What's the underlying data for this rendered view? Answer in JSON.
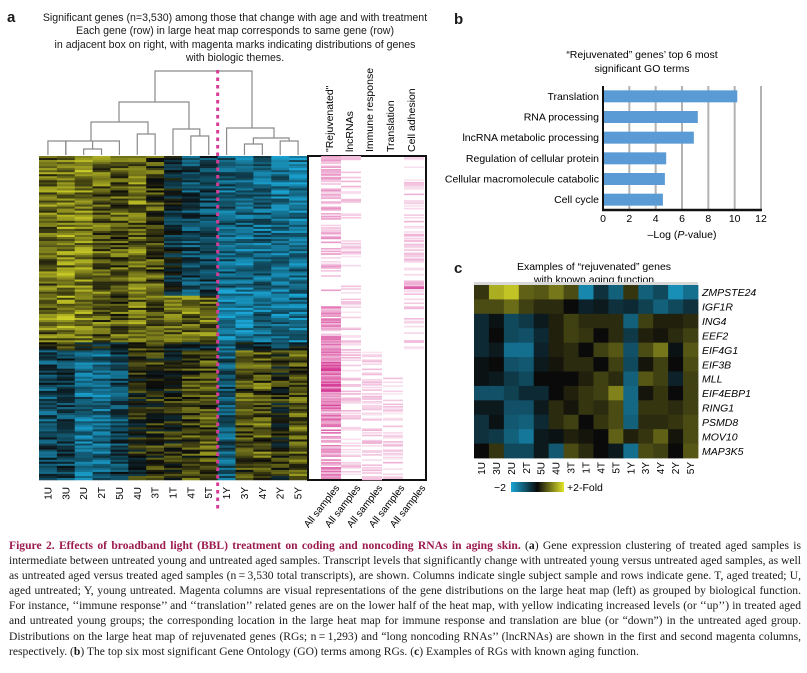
{
  "panel_a": {
    "letter": "a",
    "title_lines": [
      "Significant genes (n=3,530) among those that change with age and with treatment",
      "Each gene (row) in large heat map corresponds to same gene (row)",
      "in adjacent box on right, with magenta marks indicating distributions of genes",
      "with biologic themes."
    ],
    "samples": [
      "1U",
      "3U",
      "2U",
      "2T",
      "5U",
      "4U",
      "3T",
      "1T",
      "4T",
      "5T",
      "1Y",
      "3Y",
      "4Y",
      "2Y",
      "5Y"
    ],
    "theme_columns": [
      "\"Rejuvenated\"",
      "lncRNAs",
      "Immune response",
      "Translation",
      "Cell adhesion"
    ],
    "theme_footer": [
      "All samples",
      "All samples",
      "All samples",
      "All samples",
      "All samples"
    ],
    "colors": {
      "low": "#1aa6d6",
      "mid": "#0a0a0a",
      "high": "#e2e42a",
      "magenta": "#d63c96",
      "divider": "#d63c96"
    }
  },
  "panel_b": {
    "letter": "b",
    "chart_data": {
      "type": "bar",
      "orientation": "horizontal",
      "title": "“Rejuvenated” genes’ top 6 most significant GO terms",
      "title_lines": [
        "“Rejuvenated” genes’ top 6 most",
        "significant GO terms"
      ],
      "categories": [
        "Translation",
        "RNA processing",
        "lncRNA metabolic processing",
        "Regulation of cellular protein",
        "Cellular macromolecule catabolic",
        "Cell cycle"
      ],
      "values": [
        10.2,
        7.2,
        6.9,
        4.8,
        4.7,
        4.55
      ],
      "xlabel": "–Log (P-value)",
      "xlabel_parts": [
        "–Log (",
        "P",
        "-value)"
      ],
      "ylabel": "",
      "xlim": [
        0,
        12
      ],
      "xticks": [
        0,
        2,
        4,
        6,
        8,
        10,
        12
      ],
      "grid": true,
      "bar_color": "#5b9bd5"
    }
  },
  "panel_c": {
    "letter": "c",
    "title_lines": [
      "Examples of “rejuvenated” genes",
      "with known aging function"
    ],
    "columns": [
      "1U",
      "3U",
      "2U",
      "2T",
      "5U",
      "4U",
      "3T",
      "1T",
      "4T",
      "5T",
      "1Y",
      "3Y",
      "4Y",
      "2Y",
      "5Y"
    ],
    "genes": [
      "ZMPSTE24",
      "IGF1R",
      "ING4",
      "EEF2",
      "EIF4G1",
      "EIF3B",
      "MLL",
      "EIF4EBP1",
      "RING1",
      "PSMD8",
      "MOV10",
      "MAP3K5"
    ],
    "values": [
      [
        0.4,
        1.5,
        1.7,
        0.8,
        0.7,
        1.0,
        0.6,
        -1.6,
        -0.5,
        -1.1,
        0.4,
        -1.1,
        -0.8,
        -1.7,
        -1.3
      ],
      [
        0.6,
        0.6,
        0.9,
        0.5,
        0.3,
        0.3,
        0.0,
        -0.3,
        -0.2,
        -0.5,
        -0.4,
        -0.7,
        -1.1,
        -0.8,
        -0.5
      ],
      [
        -0.4,
        -0.1,
        -0.8,
        -0.6,
        -0.2,
        0.2,
        0.5,
        0.3,
        0.3,
        0.3,
        -1.1,
        0.5,
        0.2,
        0.2,
        0.3
      ],
      [
        -0.4,
        0.0,
        -0.8,
        -0.9,
        -0.4,
        0.2,
        0.5,
        0.4,
        0.0,
        0.3,
        -0.6,
        0.2,
        0.1,
        0.3,
        0.5
      ],
      [
        -0.4,
        -0.2,
        -1.3,
        -1.3,
        -0.3,
        0.2,
        0.3,
        0.0,
        0.5,
        0.7,
        -0.9,
        0.6,
        1.0,
        -0.1,
        0.7
      ],
      [
        -0.1,
        0.0,
        -0.9,
        -1.0,
        -0.2,
        0.1,
        0.3,
        0.3,
        0.0,
        0.5,
        -0.8,
        0.1,
        0.5,
        0.0,
        0.6
      ],
      [
        -0.1,
        -0.2,
        -0.6,
        -0.8,
        0.0,
        0.0,
        0.0,
        0.2,
        0.5,
        0.3,
        -1.1,
        0.7,
        0.5,
        -0.3,
        0.5
      ],
      [
        -0.9,
        -0.9,
        -0.7,
        -0.4,
        -0.4,
        0.0,
        0.2,
        0.4,
        0.5,
        1.1,
        -1.2,
        0.1,
        0.4,
        0.0,
        0.5
      ],
      [
        -0.2,
        -0.2,
        -0.9,
        -0.9,
        -0.2,
        0.3,
        0.1,
        0.4,
        0.3,
        0.6,
        -1.2,
        0.4,
        0.4,
        0.3,
        0.5
      ],
      [
        -0.5,
        -0.1,
        -1.0,
        -1.1,
        -0.4,
        0.3,
        0.5,
        0.0,
        0.4,
        0.6,
        -1.1,
        0.3,
        0.3,
        0.4,
        0.6
      ],
      [
        -0.5,
        -0.6,
        -1.1,
        -1.4,
        -0.2,
        -0.1,
        0.2,
        0.1,
        0.0,
        0.8,
        0.2,
        0.4,
        0.8,
        0.1,
        0.6
      ],
      [
        0.0,
        0.4,
        -0.8,
        -0.8,
        -0.2,
        -1.0,
        0.6,
        0.3,
        0.0,
        -0.2,
        -1.3,
        0.6,
        0.5,
        0.0,
        0.7
      ]
    ],
    "legend": {
      "low_label": "−2",
      "high_label": "+2-Fold",
      "min": -2,
      "max": 2
    }
  },
  "caption": {
    "head": "Figure 2.  Effects of broadband light (BBL) treatment on coding and noncoding RNAs in aging skin.",
    "segments": [
      {
        "t": " (",
        "b": false
      },
      {
        "t": "a",
        "b": true
      },
      {
        "t": ") Gene expression clustering of treated aged samples is intermediate between untreated young and untreated aged samples. Transcript levels that significantly change with untreated young versus untreated aged samples, as well as untreated aged versus treated aged samples (n = 3,530 total transcripts), are shown. Columns indicate single subject sample and rows indicate gene. T, aged treated; U, aged untreated; Y, young untreated. Magenta columns are visual representations of the gene distributions on the large heat map (left) as grouped by biological function. For instance, ‘‘immune response’’ and ‘‘translation’’ related genes are on the lower half of the heat map, with yellow indicating increased levels (or ‘‘up’’) in treated aged and untreated young groups; the corresponding location in the large heat map for immune response and translation are blue (or “down”) in the untreated aged group. Distributions on the large heat map of rejuvenated genes (RGs; n = 1,293) and “long noncoding RNAs’’ (lncRNAs) are shown in the first and second magenta columns, respectively. (",
        "b": false
      },
      {
        "t": "b",
        "b": true
      },
      {
        "t": ") The top six most significant Gene Ontology (GO) terms among RGs. (",
        "b": false
      },
      {
        "t": "c",
        "b": true
      },
      {
        "t": ") Examples of RGs with known aging function.",
        "b": false
      }
    ]
  }
}
